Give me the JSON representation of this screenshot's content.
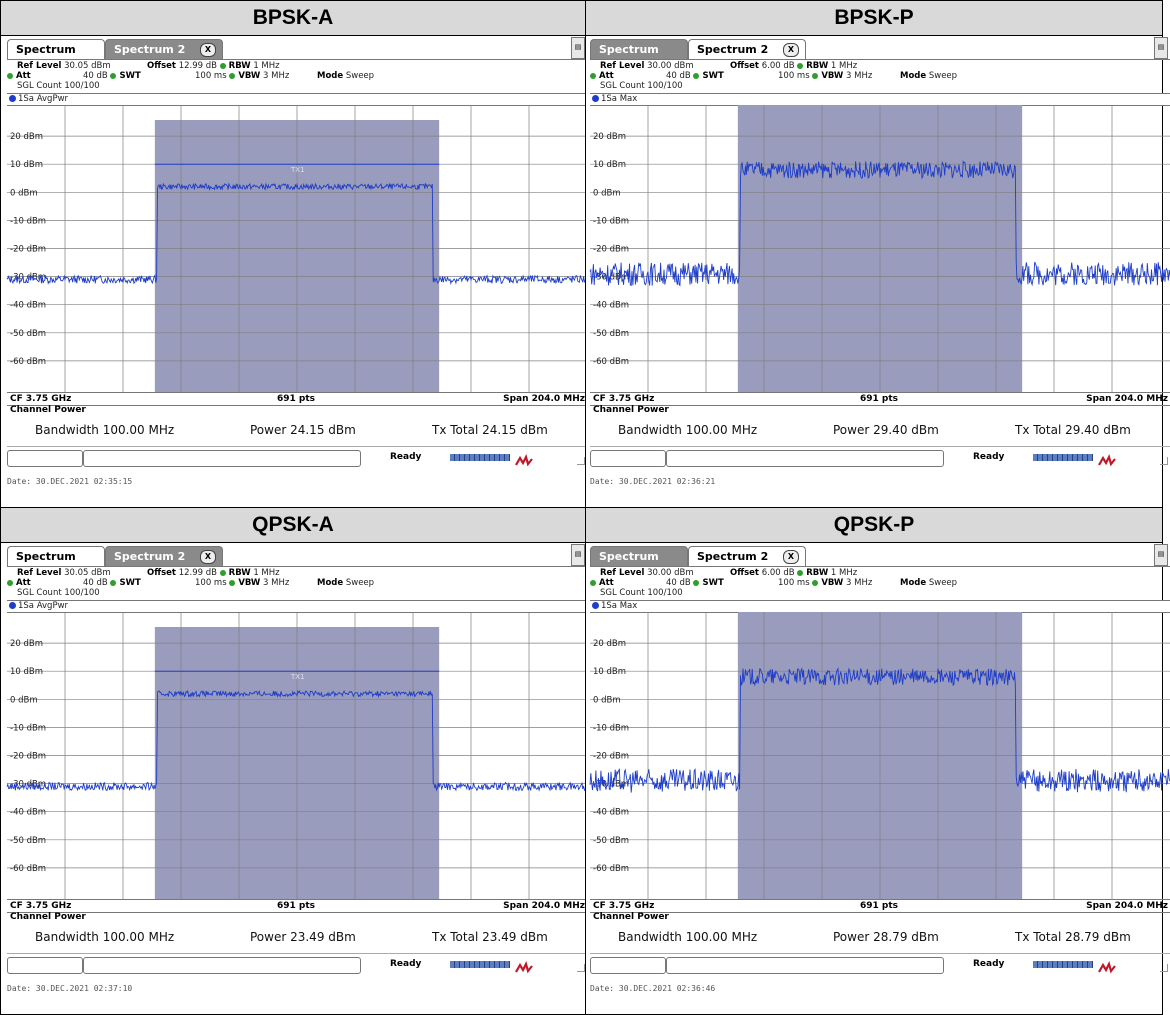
{
  "panels": [
    {
      "title": "BPSK-A",
      "tabs": [
        "Spectrum",
        "Spectrum 2"
      ],
      "active_tab": 0,
      "ref_level": "30.05 dBm",
      "offset": "12.99 dB",
      "rbw": "1 MHz",
      "att": "40 dB",
      "swt": "100 ms",
      "vbw": "3 MHz",
      "mode": "Sweep",
      "sgl_count": "SGL Count 100/100",
      "trace": "1Sa AvgPwr",
      "txlabel": "TX1",
      "cf": "CF 3.75 GHz",
      "pts": "691 pts",
      "span": "Span 204.0 MHz",
      "cp_title": "Channel Power",
      "bandwidth": "Bandwidth 100.00 MHz",
      "power": "Power 24.15 dBm",
      "txtotal": "Tx Total 24.15 dBm",
      "status": "Ready",
      "date": "Date: 30.DEC.2021  02:35:15"
    },
    {
      "title": "BPSK-P",
      "tabs": [
        "Spectrum",
        "Spectrum 2"
      ],
      "active_tab": 1,
      "ref_level": "30.00 dBm",
      "offset": "6.00 dB",
      "rbw": "1 MHz",
      "att": "40 dB",
      "swt": "100 ms",
      "vbw": "3 MHz",
      "mode": "Sweep",
      "sgl_count": "SGL Count 100/100",
      "trace": "1Sa Max",
      "txlabel": "",
      "cf": "CF 3.75 GHz",
      "pts": "691 pts",
      "span": "Span 204.0 MHz",
      "cp_title": "Channel Power",
      "bandwidth": "Bandwidth 100.00 MHz",
      "power": "Power 29.40 dBm",
      "txtotal": "Tx Total 29.40 dBm",
      "status": "Ready",
      "date": "Date: 30.DEC.2021  02:36:21"
    },
    {
      "title": "QPSK-A",
      "tabs": [
        "Spectrum",
        "Spectrum 2"
      ],
      "active_tab": 0,
      "ref_level": "30.05 dBm",
      "offset": "12.99 dB",
      "rbw": "1 MHz",
      "att": "40 dB",
      "swt": "100 ms",
      "vbw": "3 MHz",
      "mode": "Sweep",
      "sgl_count": "SGL Count 100/100",
      "trace": "1Sa AvgPwr",
      "txlabel": "TX1",
      "cf": "CF 3.75 GHz",
      "pts": "691 pts",
      "span": "Span 204.0 MHz",
      "cp_title": "Channel Power",
      "bandwidth": "Bandwidth 100.00 MHz",
      "power": "Power 23.49 dBm",
      "txtotal": "Tx Total 23.49 dBm",
      "status": "Ready",
      "date": "Date: 30.DEC.2021  02:37:10"
    },
    {
      "title": "QPSK-P",
      "tabs": [
        "Spectrum",
        "Spectrum 2"
      ],
      "active_tab": 1,
      "ref_level": "30.00 dBm",
      "offset": "6.00 dB",
      "rbw": "1 MHz",
      "att": "40 dB",
      "swt": "100 ms",
      "vbw": "3 MHz",
      "mode": "Sweep",
      "sgl_count": "SGL Count 100/100",
      "trace": "1Sa Max",
      "txlabel": "",
      "cf": "CF 3.75 GHz",
      "pts": "691 pts",
      "span": "Span 204.0 MHz",
      "cp_title": "Channel Power",
      "bandwidth": "Bandwidth 100.00 MHz",
      "power": "Power 28.79 dBm",
      "txtotal": "Tx Total 28.79 dBm",
      "status": "Ready",
      "date": "Date: 30.DEC.2021  02:36:46"
    }
  ],
  "y_labels": [
    "20 dBm",
    "10 dBm",
    "0 dBm",
    "-10 dBm",
    "-20 dBm",
    "-30 dBm",
    "-40 dBm",
    "-50 dBm",
    "-60 dBm"
  ],
  "colors": {
    "trace": "#1e3dc8",
    "channel_fill": "#9a9cbd",
    "grid": "#808080",
    "header_bg": "#d9d9d9"
  },
  "chart_data": [
    {
      "type": "line",
      "title": "BPSK-A",
      "x_center_ghz": 3.75,
      "span_mhz": 204.0,
      "channel_bw_mhz": 100.0,
      "ylim_dbm": [
        -70,
        30
      ],
      "series": [
        {
          "name": "1Sa AvgPwr",
          "in_band_dbm": 2,
          "out_band_dbm": -31,
          "noise_dbm": 1.0
        }
      ]
    },
    {
      "type": "line",
      "title": "BPSK-P",
      "x_center_ghz": 3.75,
      "span_mhz": 204.0,
      "channel_bw_mhz": 100.0,
      "ylim_dbm": [
        -70,
        30
      ],
      "series": [
        {
          "name": "1Sa Max",
          "in_band_dbm": 8,
          "out_band_dbm": -29,
          "noise_dbm": 3.0
        }
      ]
    },
    {
      "type": "line",
      "title": "QPSK-A",
      "x_center_ghz": 3.75,
      "span_mhz": 204.0,
      "channel_bw_mhz": 100.0,
      "ylim_dbm": [
        -70,
        30
      ],
      "series": [
        {
          "name": "1Sa AvgPwr",
          "in_band_dbm": 2,
          "out_band_dbm": -31,
          "noise_dbm": 1.0
        }
      ]
    },
    {
      "type": "line",
      "title": "QPSK-P",
      "x_center_ghz": 3.75,
      "span_mhz": 204.0,
      "channel_bw_mhz": 100.0,
      "ylim_dbm": [
        -70,
        30
      ],
      "series": [
        {
          "name": "1Sa Max",
          "in_band_dbm": 8,
          "out_band_dbm": -29,
          "noise_dbm": 3.0
        }
      ]
    }
  ]
}
